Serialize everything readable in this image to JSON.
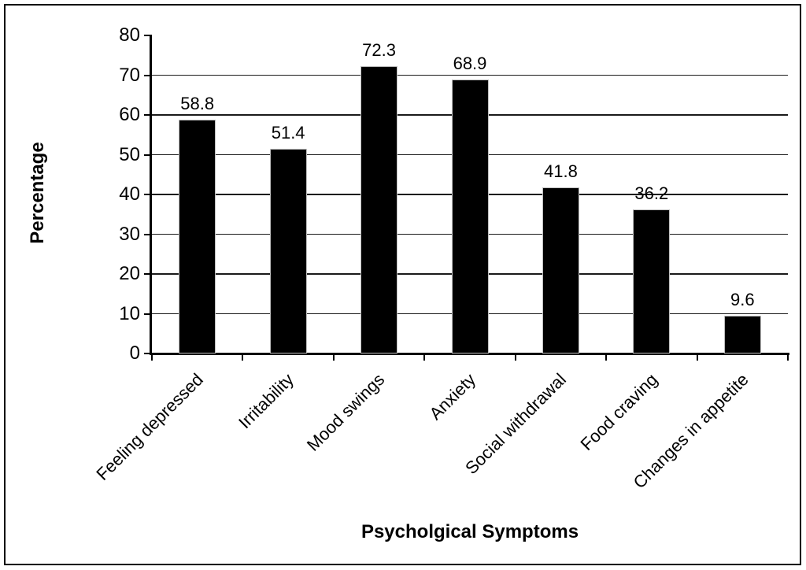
{
  "chart_data": {
    "type": "bar",
    "title": "",
    "xlabel": "Psycholgical Symptoms",
    "ylabel": "Percentage",
    "categories": [
      "Feeling depressed",
      "Irritability",
      "Mood swings",
      "Anxiety",
      "Social withdrawal",
      "Food craving",
      "Changes in appetite"
    ],
    "values": [
      58.8,
      51.4,
      72.3,
      68.9,
      41.8,
      36.2,
      9.6
    ],
    "data_labels": [
      "58.8",
      "51.4",
      "72.3",
      "68.9",
      "41.8",
      "36.2",
      "9.6"
    ],
    "ylim": [
      0,
      80
    ],
    "ytick_step": 10,
    "yticks": [
      0,
      10,
      20,
      30,
      40,
      50,
      60,
      70,
      80
    ],
    "grid": "horizontal-only",
    "legend": "none",
    "colors": {
      "bar": "#000000",
      "bar_border": "#bfbfbf",
      "axis": "#000000",
      "gridline": "#1a1a1a",
      "background": "#ffffff",
      "text": "#000000"
    }
  }
}
